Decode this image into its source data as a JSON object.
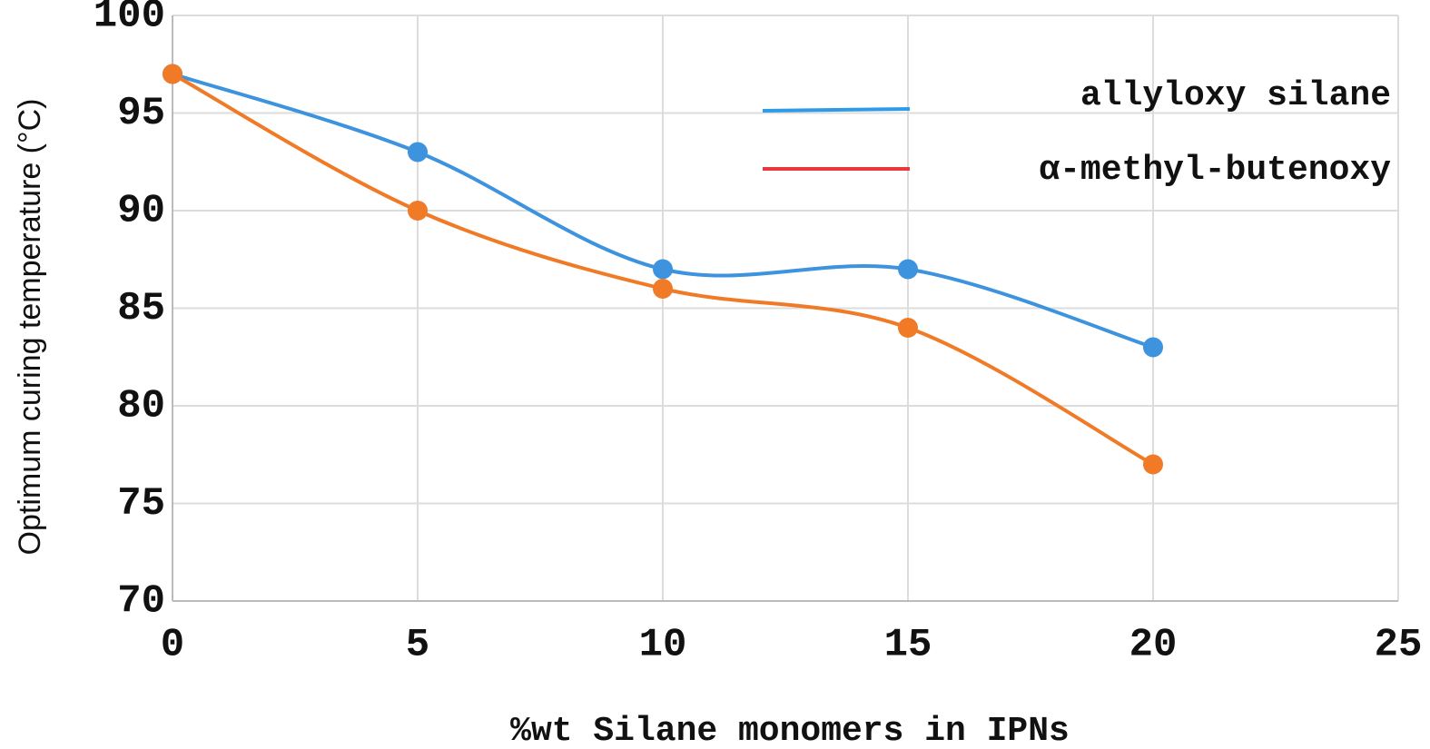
{
  "chart_data": {
    "type": "line",
    "x_label": "%wt Silane monomers in IPNs",
    "y_label": "Optimum curing temperature (°C)",
    "x": [
      0,
      5,
      10,
      15,
      20
    ],
    "series": [
      {
        "name": "allyloxy silane",
        "color": "#3d93dd",
        "legend_color": "#2f9be8",
        "values": [
          97,
          93,
          87,
          87,
          83
        ]
      },
      {
        "name": "α-methyl-butenoxy",
        "color": "#f07a26",
        "legend_color": "#e8393f",
        "values": [
          97,
          90,
          86,
          84,
          77
        ]
      }
    ],
    "xlim": [
      0,
      25
    ],
    "xticks": [
      0,
      5,
      10,
      15,
      20,
      25
    ],
    "ylim": [
      70,
      100
    ],
    "yticks": [
      70,
      75,
      80,
      85,
      90,
      95,
      100
    ],
    "grid": true,
    "smooth": true,
    "legend": "upper right"
  }
}
